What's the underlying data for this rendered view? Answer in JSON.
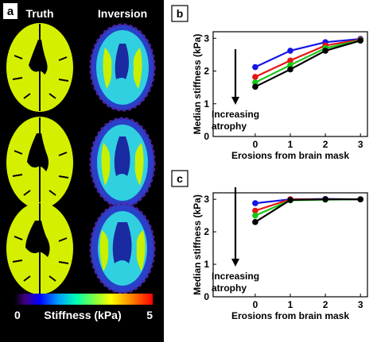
{
  "panel_a": {
    "label": "a",
    "col_truth": "Truth",
    "col_inversion": "Inversion",
    "colorbar": {
      "min": "0",
      "max": "5",
      "title": "Stiffness (kPa)"
    },
    "colors": {
      "background": "#000000",
      "truth_fill": "#d4f000",
      "label_box": "#ffffff"
    }
  },
  "panel_b": {
    "label": "b",
    "annotation": [
      "Increasing",
      "atrophy"
    ]
  },
  "panel_c": {
    "label": "c",
    "annotation": [
      "Increasing",
      "atrophy"
    ]
  },
  "chart_data": [
    {
      "type": "line",
      "panel": "b",
      "x": [
        0,
        1,
        2,
        3
      ],
      "xlabel": "Erosions from brain mask",
      "ylabel": "Median stiffness (kPa)",
      "xlim": [
        -1.2,
        3.2
      ],
      "ylim": [
        0,
        3.2
      ],
      "xticks": [
        0,
        1,
        2,
        3
      ],
      "yticks": [
        0,
        1,
        2,
        3
      ],
      "series": [
        {
          "color": "#1414e6",
          "values": [
            2.12,
            2.62,
            2.88,
            2.98
          ]
        },
        {
          "color": "#e61414",
          "values": [
            1.82,
            2.32,
            2.78,
            2.96
          ]
        },
        {
          "color": "#14c814",
          "values": [
            1.65,
            2.18,
            2.7,
            2.94
          ]
        },
        {
          "color": "#000000",
          "values": [
            1.52,
            2.05,
            2.62,
            2.93
          ]
        }
      ]
    },
    {
      "type": "line",
      "panel": "c",
      "x": [
        0,
        1,
        2,
        3
      ],
      "xlabel": "Erosions from brain mask",
      "ylabel": "Median stiffness (kPa)",
      "xlim": [
        -1.2,
        3.2
      ],
      "ylim": [
        0,
        3.2
      ],
      "xticks": [
        0,
        1,
        2,
        3
      ],
      "yticks": [
        0,
        1,
        2,
        3
      ],
      "series": [
        {
          "color": "#1414e6",
          "values": [
            2.88,
            3.0,
            3.01,
            3.0
          ]
        },
        {
          "color": "#e61414",
          "values": [
            2.65,
            3.0,
            3.0,
            3.0
          ]
        },
        {
          "color": "#14c814",
          "values": [
            2.5,
            2.97,
            2.99,
            3.0
          ]
        },
        {
          "color": "#000000",
          "values": [
            2.3,
            2.98,
            3.0,
            3.0
          ]
        }
      ]
    }
  ]
}
